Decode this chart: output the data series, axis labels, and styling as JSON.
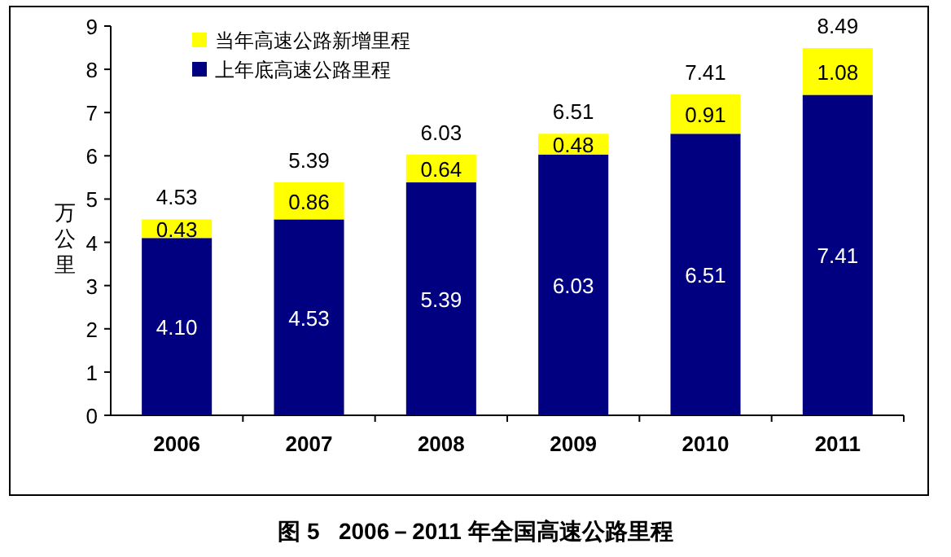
{
  "chart_data": {
    "type": "bar",
    "title": "图 5   2006－2011 年全国高速公路里程",
    "ylabel": "万公里",
    "categories": [
      "2006",
      "2007",
      "2008",
      "2009",
      "2010",
      "2011"
    ],
    "stacked": true,
    "legend": "top left",
    "ylim": [
      0,
      9
    ],
    "yticks": [
      0,
      1,
      2,
      3,
      4,
      5,
      6,
      7,
      8,
      9
    ],
    "series": [
      {
        "name": "上年底高速公路里程",
        "color": "#000080",
        "values": [
          4.1,
          4.53,
          5.39,
          6.03,
          6.51,
          7.41
        ],
        "value_labels": [
          "4.10",
          "4.53",
          "5.39",
          "6.03",
          "6.51",
          "7.41"
        ]
      },
      {
        "name": "当年高速公路新增里程",
        "color": "#ffff00",
        "values": [
          0.43,
          0.86,
          0.64,
          0.48,
          0.91,
          1.08
        ],
        "value_labels": [
          "0.43",
          "0.86",
          "0.64",
          "0.48",
          "0.91",
          "1.08"
        ]
      }
    ],
    "totals": [
      "4.53",
      "5.39",
      "6.03",
      "6.51",
      "7.41",
      "8.49"
    ]
  }
}
